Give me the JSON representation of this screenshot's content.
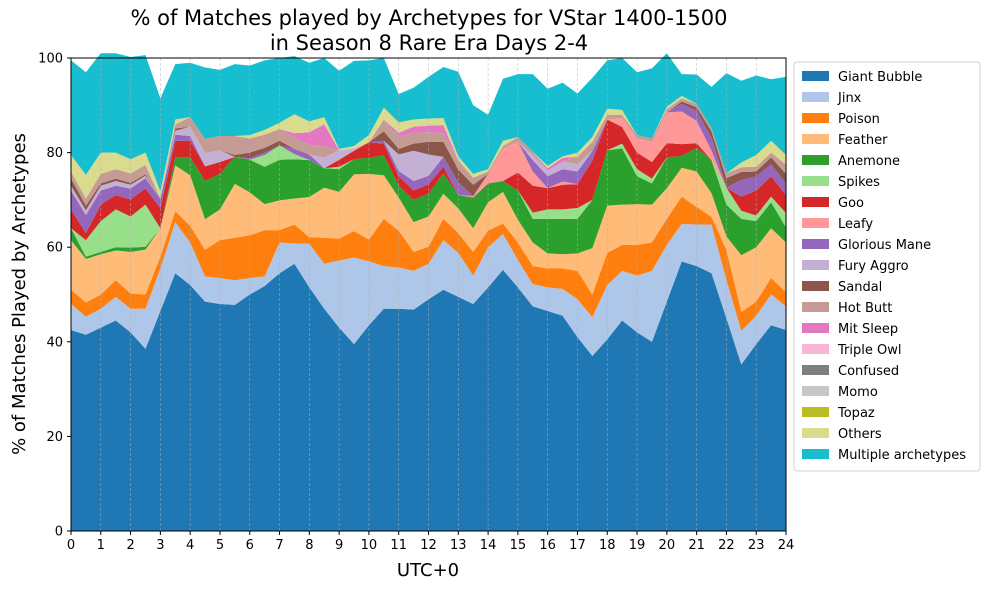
{
  "chart_data": {
    "type": "area",
    "stacked": true,
    "title_line1": "% of Matches played by Archetypes for VStar 1400-1500",
    "title_line2": "in Season 8 Rare Era Days 2-4",
    "xlabel": "UTC+0",
    "ylabel": "% of Matches Played by Archetypes",
    "xlim": [
      0,
      24
    ],
    "ylim": [
      0,
      100
    ],
    "x_ticks": [
      0,
      1,
      2,
      3,
      4,
      5,
      6,
      7,
      8,
      9,
      10,
      11,
      12,
      13,
      14,
      15,
      16,
      17,
      18,
      19,
      20,
      21,
      22,
      23,
      24
    ],
    "y_ticks": [
      0,
      20,
      40,
      60,
      80,
      100
    ],
    "grid": "vertical dashed",
    "legend_position": "right, outside",
    "x": [
      0,
      0.5,
      1,
      1.5,
      2,
      2.5,
      3,
      3.5,
      4,
      4.5,
      5,
      5.5,
      6,
      6.5,
      7,
      7.5,
      8,
      8.5,
      9,
      9.5,
      10,
      10.5,
      11,
      11.5,
      12,
      12.5,
      13,
      13.5,
      14,
      14.5,
      15,
      15.5,
      16,
      16.5,
      17,
      17.5,
      18,
      18.5,
      19,
      19.5,
      20,
      20.5,
      21,
      21.5,
      22,
      22.5,
      23,
      23.5,
      24
    ],
    "series": [
      {
        "name": "Giant Bubble",
        "color": "#1f77b4",
        "values": [
          42.5,
          41.5,
          43,
          44.5,
          42,
          38.5,
          46.5,
          54.5,
          52,
          48.5,
          48,
          47.8,
          50,
          51.8,
          54.5,
          56.5,
          51.5,
          47,
          43,
          39.5,
          43.5,
          47,
          47,
          46.8,
          49,
          51,
          49.5,
          48,
          51.5,
          55.2,
          51.5,
          47.5,
          46.5,
          45.5,
          41,
          37,
          40.5,
          44.5,
          42,
          40,
          48.5,
          57,
          56,
          54.5,
          45,
          35.2,
          39.5,
          43.5,
          42.5
        ]
      },
      {
        "name": "Jinx",
        "color": "#aec7e8",
        "values": [
          5.5,
          3.8,
          4,
          5,
          5,
          8.5,
          9,
          10.8,
          9,
          5.3,
          5.5,
          5.2,
          3.5,
          2,
          6.5,
          4.3,
          9.2,
          9.5,
          14.2,
          18.3,
          13.5,
          9,
          8.7,
          8.2,
          7.5,
          10.5,
          9.3,
          6,
          8.5,
          7.6,
          5.8,
          4.7,
          5,
          5.7,
          8,
          8.2,
          11.5,
          10.5,
          12,
          15,
          12,
          7.9,
          8.8,
          10.3,
          8.1,
          7.1,
          6,
          6.5,
          5
        ]
      },
      {
        "name": "Poison",
        "color": "#ff7f0e",
        "values": [
          3,
          3,
          3,
          3.5,
          3.2,
          3,
          2.5,
          2.3,
          3.5,
          5.7,
          8,
          9,
          9,
          9.8,
          2.6,
          4,
          1.4,
          5.5,
          4.6,
          5.6,
          4.6,
          10,
          7.8,
          4,
          3.6,
          4.5,
          4.2,
          5,
          3.5,
          2.2,
          3.7,
          3.8,
          4,
          4.3,
          6,
          4.8,
          6.8,
          5.5,
          6.5,
          6,
          5.5,
          5.8,
          3.7,
          1.6,
          6.3,
          4,
          3,
          3.5,
          3
        ]
      },
      {
        "name": "Feather",
        "color": "#ffbb78",
        "values": [
          10.5,
          9.2,
          8.5,
          6.3,
          8.8,
          9.5,
          6,
          9.7,
          10.7,
          6.4,
          6.5,
          11.4,
          9.1,
          5.5,
          6.3,
          5.5,
          8.5,
          10.6,
          9.9,
          12,
          13.9,
          9.2,
          7,
          6.3,
          6.4,
          5.3,
          5.2,
          5,
          6,
          6.7,
          4.8,
          5,
          3.2,
          3,
          3.7,
          9.8,
          10,
          8.5,
          8.6,
          8,
          6.5,
          6.1,
          7.5,
          5,
          2.9,
          12,
          11.5,
          10.5,
          10.5
        ]
      },
      {
        "name": "Anemone",
        "color": "#2ca02c",
        "values": [
          2.5,
          0.5,
          0.5,
          0.7,
          0.9,
          0.6,
          0,
          1.7,
          3.8,
          8.1,
          7.5,
          5.7,
          6.9,
          7.9,
          8.6,
          8.3,
          7.8,
          4.1,
          4.8,
          3.2,
          3.4,
          4.2,
          2.5,
          4.7,
          4.8,
          4.3,
          2.8,
          6.5,
          4,
          2.3,
          6.2,
          5,
          7.3,
          7.5,
          7.3,
          10.2,
          11.7,
          11.9,
          5.9,
          4.5,
          6.5,
          2.5,
          5,
          7,
          6.7,
          7.7,
          5.5,
          5.5,
          3.2
        ]
      },
      {
        "name": "Spikes",
        "color": "#98df8a",
        "values": [
          0,
          3.5,
          6.5,
          8,
          6.6,
          8.9,
          0,
          0,
          0,
          0,
          0,
          0,
          0,
          2.5,
          3,
          1.1,
          0,
          0,
          0.5,
          0,
          0,
          0,
          0,
          0,
          0,
          0,
          0,
          0,
          0,
          0,
          0,
          1.3,
          2,
          2,
          2.3,
          0,
          0,
          1,
          1.5,
          1,
          0,
          0,
          0,
          0,
          3.6,
          1.7,
          1.2,
          1.2,
          3
        ]
      },
      {
        "name": "Goo",
        "color": "#d62728",
        "values": [
          4,
          1.5,
          3.5,
          3,
          3.6,
          3.4,
          4.3,
          3.5,
          3.5,
          3.1,
          2.5,
          0,
          0,
          0,
          0,
          0,
          0,
          0,
          1.5,
          1.8,
          3.3,
          2.5,
          2,
          2,
          2,
          1.4,
          0,
          0,
          0,
          0,
          3.8,
          5.7,
          4.5,
          5.2,
          5,
          8.3,
          6.5,
          3.5,
          3.5,
          3.5,
          3,
          2.5,
          1,
          0,
          0,
          3,
          5.3,
          4.3,
          3.8
        ]
      },
      {
        "name": "Leafy",
        "color": "#ff9896",
        "values": [
          0,
          0,
          0,
          0,
          0,
          0,
          0,
          0,
          0,
          0,
          0,
          0,
          0,
          0,
          0,
          0,
          0,
          0,
          0,
          0,
          0,
          0,
          0,
          0,
          0,
          0,
          0,
          0.3,
          2,
          6.8,
          6.5,
          3,
          0,
          0.7,
          0,
          0,
          0,
          2,
          3,
          4.3,
          6.5,
          6.9,
          4.7,
          2,
          0,
          0,
          0,
          0,
          0
        ]
      },
      {
        "name": "Glorious Mane",
        "color": "#9467bd",
        "values": [
          4,
          3.8,
          3,
          2,
          2.3,
          2.2,
          2,
          1.3,
          1,
          0,
          0,
          0,
          0.3,
          0.5,
          0,
          1.1,
          1.2,
          0,
          0,
          0,
          0,
          0.6,
          1.1,
          2,
          1.8,
          2.1,
          2.7,
          0,
          0,
          0,
          0,
          2.4,
          2.5,
          2.6,
          2.7,
          2,
          0,
          0,
          0,
          0,
          0,
          1.6,
          2.1,
          2.7,
          0,
          3.5,
          3,
          2.5,
          2.5
        ]
      },
      {
        "name": "Fury Aggro",
        "color": "#c5b0d5",
        "values": [
          1,
          1,
          1,
          1,
          0.8,
          0.5,
          0,
          0.8,
          2,
          2.8,
          2.5,
          0,
          0,
          0,
          0,
          0,
          0,
          2.2,
          2,
          0.5,
          0,
          0,
          3.5,
          6.4,
          4.5,
          0,
          0,
          0,
          0,
          0,
          0,
          1,
          1.2,
          1.6,
          1.6,
          0,
          0,
          0,
          0,
          0,
          0,
          0,
          0,
          0,
          0,
          0,
          0,
          0,
          0
        ]
      },
      {
        "name": "Sandal",
        "color": "#8c564b",
        "values": [
          1.5,
          1,
          0.5,
          0.5,
          0.4,
          0.3,
          0,
          0.5,
          0,
          0,
          0,
          0.4,
          1.2,
          1,
          1,
          0,
          0,
          0,
          0,
          0,
          0,
          2,
          1.2,
          1.5,
          2.7,
          3.2,
          2.7,
          2.4,
          0,
          0,
          0,
          0,
          0,
          0,
          0,
          0,
          0,
          0,
          0,
          0,
          0,
          0.5,
          0.8,
          1.4,
          2,
          1.7,
          1,
          1.5,
          2
        ]
      },
      {
        "name": "Hot Butt",
        "color": "#c49c94",
        "values": [
          1.5,
          1.5,
          2,
          2,
          2,
          2,
          0,
          0.9,
          2,
          3,
          3,
          4,
          3,
          2.8,
          2.5,
          2.4,
          2,
          2.5,
          0,
          0,
          0,
          2.5,
          2.5,
          2.3,
          2,
          1.8,
          2,
          1.5,
          0.5,
          0.6,
          1,
          0.8,
          0,
          0,
          1.5,
          2,
          1,
          0.6,
          0.7,
          0.7,
          0.7,
          0.7,
          0.7,
          0.7,
          1,
          1,
          1,
          1,
          2
        ]
      },
      {
        "name": "Mit Sleep",
        "color": "#e377c2",
        "values": [
          0,
          0,
          0,
          0,
          0,
          0,
          0,
          0,
          0,
          0,
          0,
          0,
          0,
          0,
          0,
          0.9,
          2.7,
          4.6,
          0,
          0,
          0,
          0,
          0.9,
          1.3,
          1.4,
          1.7,
          0,
          0,
          0,
          0,
          0,
          0,
          0.5,
          0.8,
          0,
          0,
          0,
          0,
          0,
          0,
          0,
          0,
          0,
          0,
          0,
          0,
          0,
          0,
          0
        ]
      },
      {
        "name": "Triple Owl",
        "color": "#f7b6d2",
        "values": [
          0,
          0,
          0,
          0,
          0,
          0,
          0,
          0,
          0,
          0,
          0,
          0,
          0,
          0,
          0,
          0,
          0,
          0,
          0,
          0,
          0,
          0,
          0,
          0,
          0,
          0,
          0,
          0,
          0,
          0,
          0,
          0,
          0,
          0,
          0,
          0,
          0,
          0,
          0,
          0,
          0,
          0,
          0,
          0,
          0,
          0,
          0,
          0,
          0
        ]
      },
      {
        "name": "Confused",
        "color": "#7f7f7f",
        "values": [
          0,
          0,
          0,
          0,
          0,
          0,
          0,
          0,
          0,
          0,
          0,
          0,
          0,
          0,
          0,
          0,
          0,
          0,
          0,
          0,
          0,
          0,
          0,
          0,
          0,
          0,
          0,
          0,
          0,
          0,
          0,
          0,
          0,
          0,
          0,
          0,
          0,
          0,
          0,
          0,
          0,
          0,
          0,
          0,
          0,
          0,
          0,
          0,
          0
        ]
      },
      {
        "name": "Momo",
        "color": "#c7c7c7",
        "values": [
          0,
          0,
          0,
          0,
          0,
          0,
          0,
          0,
          0,
          0,
          0,
          0,
          0,
          0,
          0,
          0,
          0,
          0,
          0,
          0,
          0,
          0,
          0,
          0,
          0,
          0,
          0,
          0,
          0,
          0,
          0,
          0,
          0,
          0,
          0,
          0,
          0,
          0,
          0,
          0,
          0,
          0,
          0,
          0,
          0,
          0,
          0,
          0,
          0
        ]
      },
      {
        "name": "Topaz",
        "color": "#bcbd22",
        "values": [
          0,
          0,
          0,
          0,
          0,
          0,
          0,
          0,
          0,
          0,
          0,
          0,
          0,
          0,
          0,
          0,
          0,
          0,
          0,
          0,
          0,
          0,
          0,
          0,
          0,
          0,
          0,
          0,
          0,
          0,
          0,
          0,
          0,
          0,
          0,
          0,
          0,
          0,
          0,
          0,
          0,
          0,
          0,
          0,
          0,
          0,
          0,
          0,
          0
        ]
      },
      {
        "name": "Others",
        "color": "#dbdb8d",
        "values": [
          3.5,
          5,
          4.5,
          3.5,
          3,
          2.6,
          1.5,
          1,
          0,
          0,
          0,
          0,
          0.7,
          1,
          1.3,
          4,
          2.3,
          1.5,
          0.3,
          0.5,
          1.5,
          2.5,
          2.2,
          1.5,
          1.5,
          1.5,
          0.8,
          0.8,
          0.5,
          1.1,
          0,
          0,
          0.5,
          0.3,
          0.9,
          1,
          1.3,
          1,
          0,
          0,
          0.5,
          0.5,
          0,
          0,
          0,
          1,
          2.5,
          2.5,
          2
        ]
      },
      {
        "name": "Multiple archetypes",
        "color": "#17becf",
        "values": [
          20,
          21.7,
          21,
          21,
          21.6,
          20.6,
          19.7,
          11.7,
          11.5,
          15.1,
          14,
          15.2,
          14.7,
          14.7,
          13.7,
          12.3,
          12.4,
          12.5,
          16.5,
          18,
          15.8,
          10.5,
          6,
          6.7,
          8.8,
          10.8,
          17.9,
          14.5,
          11.5,
          13.1,
          13.3,
          16.4,
          16.3,
          15.6,
          12.5,
          12.5,
          10.2,
          11,
          13.3,
          14.8,
          11.3,
          4.6,
          6.2,
          8.7,
          21.2,
          17.3,
          16.8,
          13,
          16.5
        ]
      }
    ]
  }
}
